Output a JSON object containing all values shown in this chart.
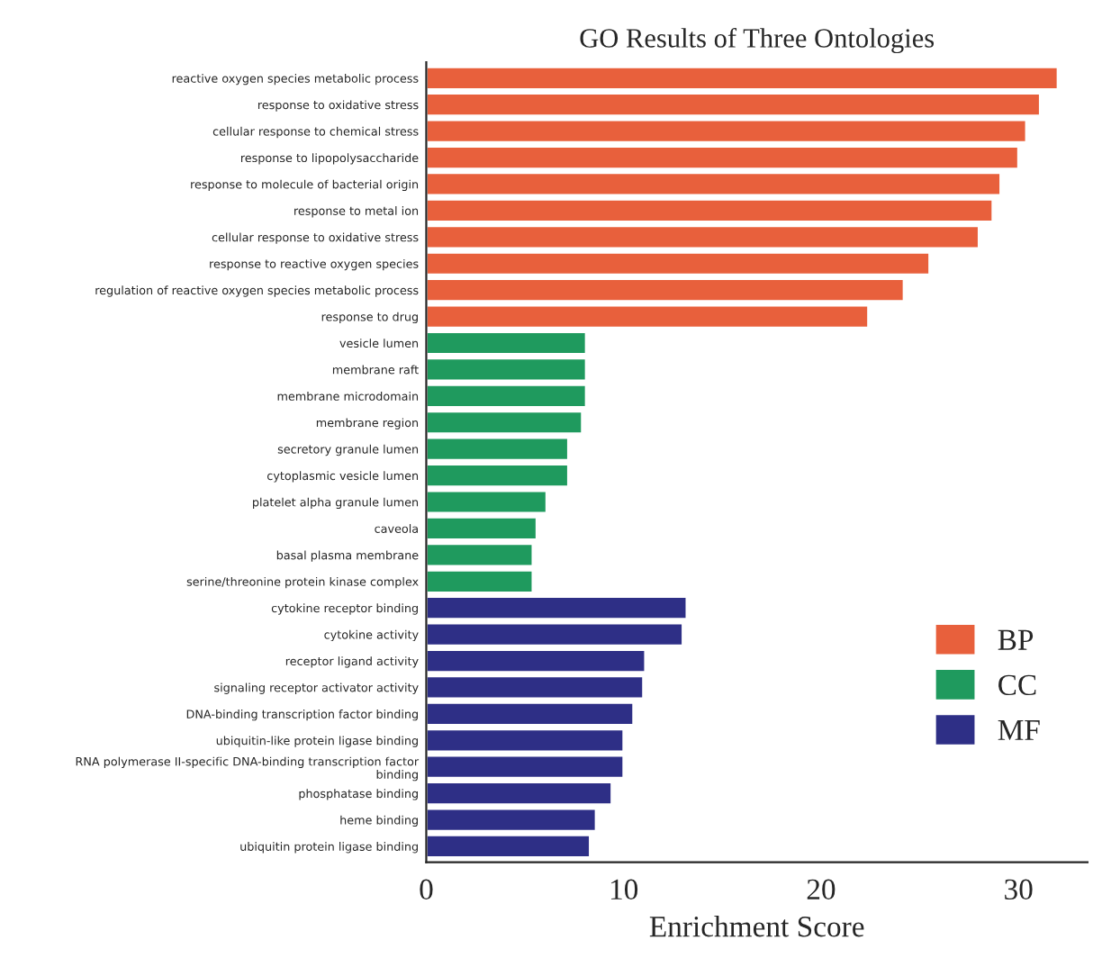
{
  "chart_data": {
    "type": "bar",
    "orientation": "horizontal",
    "title": "GO Results of Three Ontologies",
    "xlabel": "Enrichment Score",
    "categories": [
      "reactive oxygen species metabolic process",
      "response to oxidative stress",
      "cellular response to chemical stress",
      "response to lipopolysaccharide",
      "response to molecule of bacterial origin",
      "response to metal ion",
      "cellular response to oxidative stress",
      "response to reactive oxygen species",
      "regulation of reactive oxygen species metabolic process",
      "response to drug",
      "vesicle lumen",
      "membrane raft",
      "membrane microdomain",
      "membrane region",
      "secretory granule lumen",
      "cytoplasmic vesicle lumen",
      "platelet alpha granule lumen",
      "caveola",
      "basal plasma membrane",
      "serine/threonine protein kinase complex",
      "cytokine receptor binding",
      "cytokine activity",
      "receptor ligand activity",
      "signaling receptor activator activity",
      "DNA-binding transcription factor binding",
      "ubiquitin-like protein ligase binding",
      "RNA polymerase II-specific DNA-binding transcription factor\nbinding",
      "phosphatase binding",
      "heme binding",
      "ubiquitin protein ligase binding"
    ],
    "series": [
      {
        "name": "BP",
        "color": "#e8603c",
        "values": [
          32.0,
          31.1,
          30.4,
          30.0,
          29.1,
          28.7,
          28.0,
          25.5,
          24.2,
          22.4,
          null,
          null,
          null,
          null,
          null,
          null,
          null,
          null,
          null,
          null,
          null,
          null,
          null,
          null,
          null,
          null,
          null,
          null,
          null,
          null
        ]
      },
      {
        "name": "CC",
        "color": "#1f9a5e",
        "values": [
          null,
          null,
          null,
          null,
          null,
          null,
          null,
          null,
          null,
          null,
          8.1,
          8.1,
          8.1,
          7.9,
          7.2,
          7.2,
          6.1,
          5.6,
          5.4,
          5.4,
          null,
          null,
          null,
          null,
          null,
          null,
          null,
          null,
          null,
          null
        ]
      },
      {
        "name": "MF",
        "color": "#2e2f86",
        "values": [
          null,
          null,
          null,
          null,
          null,
          null,
          null,
          null,
          null,
          null,
          null,
          null,
          null,
          null,
          null,
          null,
          null,
          null,
          null,
          null,
          13.2,
          13.0,
          11.1,
          11.0,
          10.5,
          10.0,
          10.0,
          9.4,
          8.6,
          8.3
        ]
      }
    ],
    "xlim": [
      0,
      33.5
    ],
    "xticks": [
      0,
      10,
      20,
      30
    ],
    "grid": false,
    "legend": "right"
  }
}
